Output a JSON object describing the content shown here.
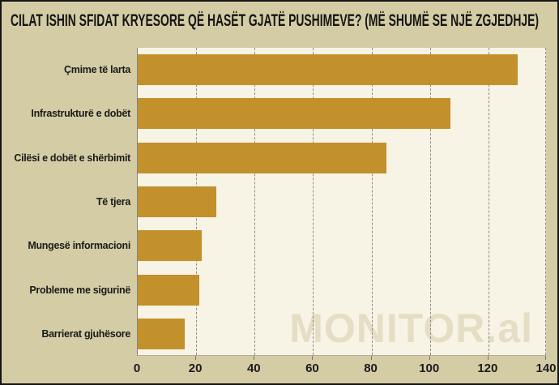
{
  "chart_data": {
    "type": "bar",
    "orientation": "horizontal",
    "title": "CILAT ISHIN SFIDAT KRYESORE QË HASËT GJATË PUSHIMEVE? (MË SHUMË SE NJË ZGJEDHJE)",
    "categories": [
      "Çmime të larta",
      "Infrastrukturë e dobët",
      "Cilësi e dobët e shërbimit",
      "Të tjera",
      "Mungesë informacioni",
      "Probleme me sigurinë",
      "Barrierat gjuhësore"
    ],
    "values": [
      130,
      107,
      85,
      27,
      22,
      21,
      16
    ],
    "xlabel": "",
    "ylabel": "",
    "xlim": [
      0,
      140
    ],
    "xticks": [
      0,
      20,
      40,
      60,
      80,
      100,
      120,
      140
    ],
    "grid": "vertical-dashed",
    "legend_position": "none",
    "watermark": "MONITOR.al"
  },
  "colors": {
    "background": "#d4cca4",
    "plot_background": "#f7f3e5",
    "bar": "#c2912c",
    "text": "#1b1b1b",
    "gridline": "#8e8e8e",
    "watermark": "#e5dec5",
    "frame": "#141414"
  }
}
